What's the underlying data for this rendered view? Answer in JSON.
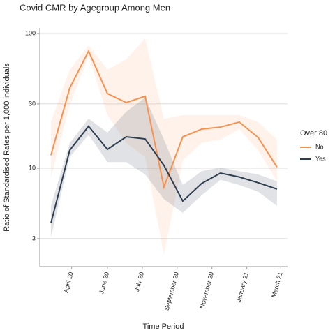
{
  "chart_data": {
    "type": "line",
    "title": "Covid CMR by Agegroup Among Men",
    "xlabel": "Time Period",
    "ylabel": "Ratio of Standardised Rates per 1,000 individuals",
    "legend_title": "Over 80",
    "log_y": true,
    "grid": true,
    "x": [
      0,
      1,
      2,
      3,
      4,
      5,
      6,
      7,
      8,
      9,
      10,
      11,
      12
    ],
    "xlim": [
      -0.59,
      12.56
    ],
    "xticks": [
      {
        "value": 1.1,
        "label": "April 20"
      },
      {
        "value": 3.0,
        "label": "June 20"
      },
      {
        "value": 4.85,
        "label": "July 20"
      },
      {
        "value": 6.7,
        "label": "September 20"
      },
      {
        "value": 8.55,
        "label": "November 20"
      },
      {
        "value": 10.4,
        "label": "January 21"
      },
      {
        "value": 12.2,
        "label": "March 21"
      }
    ],
    "ylim": [
      1.86,
      110
    ],
    "yticks": [
      3,
      10,
      30,
      100
    ],
    "series": [
      {
        "name": "No",
        "color": "#f8914f",
        "values": [
          12.5,
          39.4,
          74,
          35.8,
          30.7,
          34.2,
          7.25,
          17.1,
          19.5,
          20.2,
          22,
          16.9,
          10.2
        ],
        "upper": [
          22,
          53.8,
          81.6,
          53.8,
          64.3,
          92,
          23.3,
          24.8,
          24.8,
          24.8,
          24.8,
          22,
          16.3
        ],
        "lower": [
          8.5,
          29.6,
          68.2,
          24.8,
          15.4,
          12.1,
          2.28,
          11.4,
          15.4,
          16.3,
          19.5,
          13.6,
          8.0
        ]
      },
      {
        "name": "Yes",
        "color": "#2e3e50",
        "values": [
          3.9,
          13.6,
          20.5,
          13.8,
          17.1,
          16.5,
          10.5,
          5.7,
          7.7,
          9.2,
          8.6,
          7.8,
          7.0
        ],
        "upper": [
          5.25,
          15.4,
          23.3,
          18.4,
          26.3,
          33.4,
          16.3,
          7.5,
          9.5,
          10.1,
          9.5,
          9.0,
          8.0
        ],
        "lower": [
          3.07,
          12.1,
          17.7,
          11.1,
          11.1,
          9.0,
          5.9,
          4.66,
          6.3,
          8.2,
          7.5,
          6.7,
          5.25
        ]
      }
    ]
  }
}
